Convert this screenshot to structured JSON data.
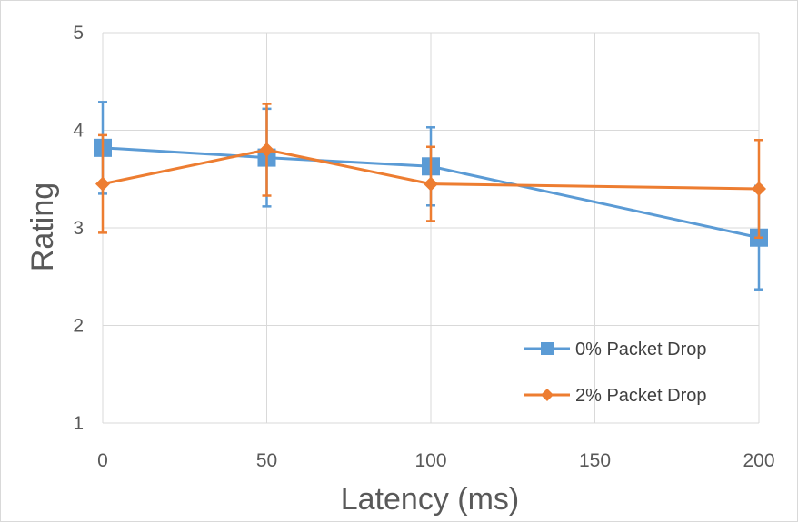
{
  "chart_data": {
    "type": "line",
    "title": "",
    "xlabel": "Latency (ms)",
    "ylabel": "Rating",
    "xlim": [
      0,
      200
    ],
    "ylim": [
      1,
      5
    ],
    "x_ticks": [
      "0",
      "50",
      "100",
      "150",
      "200"
    ],
    "y_ticks": [
      "1",
      "2",
      "3",
      "4",
      "5"
    ],
    "grid": true,
    "legend_position": "bottom-right",
    "series": [
      {
        "name": "0% Packet Drop",
        "color": "#5B9BD5",
        "marker": "square",
        "x": [
          0,
          50,
          100,
          200
        ],
        "y": [
          3.82,
          3.72,
          3.63,
          2.9
        ],
        "error": [
          0.47,
          0.5,
          0.4,
          0.53
        ]
      },
      {
        "name": "2% Packet Drop",
        "color": "#ED7D31",
        "marker": "diamond",
        "x": [
          0,
          50,
          100,
          200
        ],
        "y": [
          3.45,
          3.8,
          3.45,
          3.4
        ],
        "error": [
          0.5,
          0.47,
          0.38,
          0.5
        ]
      }
    ]
  }
}
